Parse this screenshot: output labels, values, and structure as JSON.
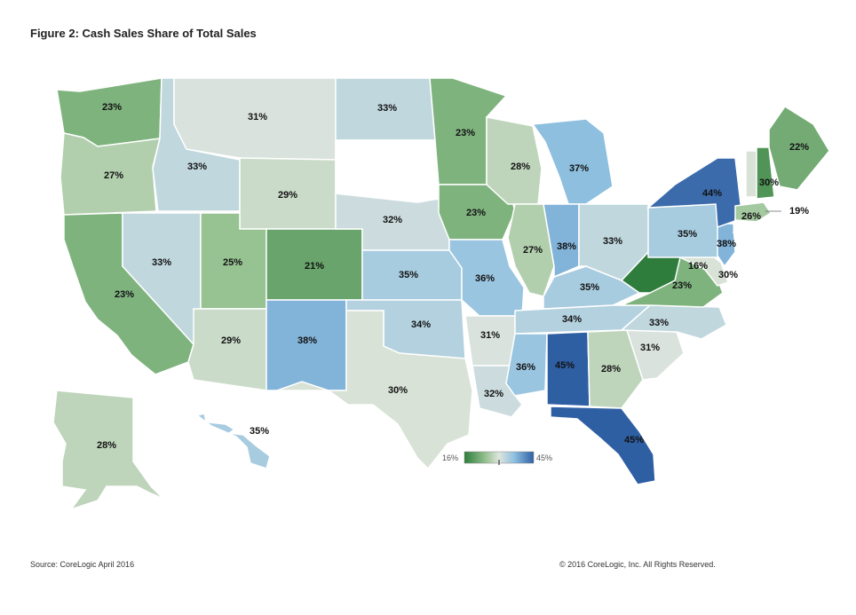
{
  "title": "Figure 2: Cash Sales Share of Total Sales",
  "source": "Source: CoreLogic April 2016",
  "copyright": "© 2016 CoreLogic, Inc. All Rights Reserved.",
  "legend": {
    "min_label": "16%",
    "max_label": "45%",
    "min": 16,
    "max": 45,
    "colors": [
      "#2e7d3c",
      "#93c08e",
      "#dfe5dd",
      "#8fc0e0",
      "#2f5fa3"
    ]
  },
  "states": [
    {
      "id": "WA",
      "value": "23%"
    },
    {
      "id": "OR",
      "value": "27%"
    },
    {
      "id": "CA",
      "value": "23%"
    },
    {
      "id": "ID",
      "value": "33%"
    },
    {
      "id": "NV",
      "value": "33%"
    },
    {
      "id": "MT",
      "value": "31%"
    },
    {
      "id": "WY",
      "value": "29%"
    },
    {
      "id": "UT",
      "value": "25%"
    },
    {
      "id": "AZ",
      "value": "29%"
    },
    {
      "id": "CO",
      "value": "21%"
    },
    {
      "id": "NM",
      "value": "38%"
    },
    {
      "id": "ND",
      "value": "33%"
    },
    {
      "id": "SD",
      "value": ""
    },
    {
      "id": "NE",
      "value": "32%"
    },
    {
      "id": "KS",
      "value": "35%"
    },
    {
      "id": "OK",
      "value": "34%"
    },
    {
      "id": "TX",
      "value": "30%"
    },
    {
      "id": "MN",
      "value": "23%"
    },
    {
      "id": "IA",
      "value": "23%"
    },
    {
      "id": "MO",
      "value": "36%"
    },
    {
      "id": "AR",
      "value": "31%"
    },
    {
      "id": "LA",
      "value": "32%"
    },
    {
      "id": "WI",
      "value": "28%"
    },
    {
      "id": "IL",
      "value": "27%"
    },
    {
      "id": "MI",
      "value": "37%"
    },
    {
      "id": "IN",
      "value": "38%"
    },
    {
      "id": "OH",
      "value": "33%"
    },
    {
      "id": "KY",
      "value": "35%"
    },
    {
      "id": "TN",
      "value": "34%"
    },
    {
      "id": "MS",
      "value": "36%"
    },
    {
      "id": "AL",
      "value": "45%"
    },
    {
      "id": "GA",
      "value": "28%"
    },
    {
      "id": "FL",
      "value": "45%"
    },
    {
      "id": "SC",
      "value": "31%"
    },
    {
      "id": "NC",
      "value": "33%"
    },
    {
      "id": "VA",
      "value": "23%"
    },
    {
      "id": "WV",
      "value": "16%"
    },
    {
      "id": "MD",
      "value": "30%"
    },
    {
      "id": "DE",
      "value": ""
    },
    {
      "id": "PA",
      "value": "35%"
    },
    {
      "id": "NJ",
      "value": "38%"
    },
    {
      "id": "NY",
      "value": "44%"
    },
    {
      "id": "CT",
      "value": ""
    },
    {
      "id": "RI",
      "value": ""
    },
    {
      "id": "MA",
      "value": "26%"
    },
    {
      "id": "VT",
      "value": "30%"
    },
    {
      "id": "NH",
      "value": "19%"
    },
    {
      "id": "ME",
      "value": "22%"
    },
    {
      "id": "AK",
      "value": "28%"
    },
    {
      "id": "HI",
      "value": "35%"
    }
  ]
}
